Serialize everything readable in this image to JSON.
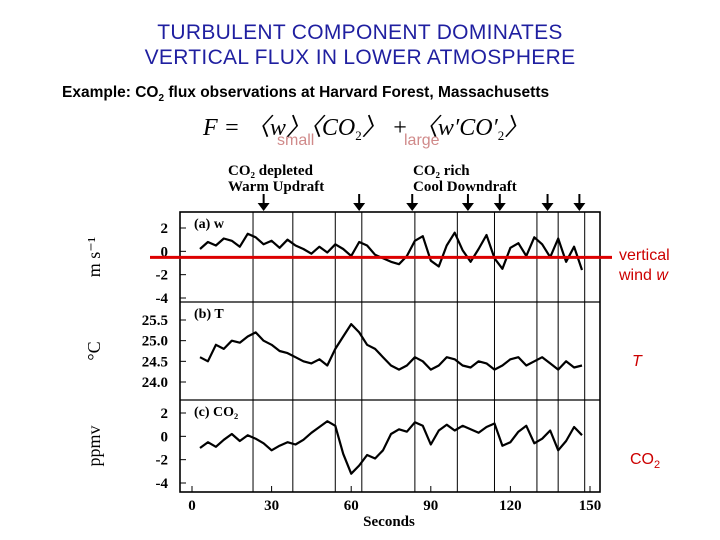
{
  "slide": {
    "title_line1": "TURBULENT COMPONENT DOMINATES",
    "title_line2": "VERTICAL FLUX IN LOWER ATMOSPHERE",
    "subtitle_pre": "Example: CO",
    "subtitle_sub": "2",
    "subtitle_post": " flux observations at Harvard Forest, Massachusetts",
    "equation": {
      "lhs": "F",
      "term1": "〈w〉〈CO",
      "term1_sub": "2",
      "term1_end": "〉",
      "plus": "+",
      "term2": "〈w′CO′",
      "term2_sub": "2",
      "term2_end": "〉"
    },
    "label_small": "small",
    "label_large": "large",
    "side_labels": {
      "w_line1": "vertical",
      "w_line2_pre": "wind ",
      "w_line2_var": "w",
      "t": "T",
      "co2_pre": "CO",
      "co2_sub": "2"
    },
    "colors": {
      "title": "#1f1fa0",
      "side": "#cc0000",
      "tag": "#d08a8a",
      "zero_line": "#dd0000"
    }
  },
  "chart_data": {
    "type": "line",
    "xlabel": "Seconds",
    "x_ticks": [
      0,
      30,
      60,
      90,
      120,
      150
    ],
    "xlim": [
      0,
      150
    ],
    "annotations": {
      "left_line1": "CO₂ depleted",
      "left_line2": "Warm Updraft",
      "right_line1": "CO₂ rich",
      "right_line2": "Cool Downdraft"
    },
    "event_times": [
      23,
      38,
      54,
      64,
      84,
      100,
      114,
      130,
      138,
      148
    ],
    "arrow_times": [
      27,
      63,
      83,
      104,
      116,
      134,
      146
    ],
    "panels": [
      {
        "label": "(a) w",
        "ylabel": "m s⁻¹",
        "ylim": [
          -4,
          2
        ],
        "y_ticks": [
          "2",
          "0",
          "-2",
          "-4"
        ],
        "y_tick_values": [
          2,
          0,
          -2,
          -4
        ],
        "series": [
          {
            "x": [
              3,
              6,
              9,
              12,
              15,
              18,
              21,
              24,
              27,
              30,
              33,
              36,
              39,
              42,
              45,
              48,
              51,
              54,
              57,
              60,
              63,
              66,
              69,
              72,
              75,
              78,
              81,
              84,
              87,
              90,
              93,
              96,
              99,
              102,
              105,
              108,
              111,
              114,
              117,
              120,
              123,
              126,
              129,
              132,
              135,
              138,
              141,
              144,
              147
            ],
            "values": [
              0.2,
              0.8,
              0.5,
              1.1,
              0.9,
              0.4,
              1.5,
              1.2,
              0.6,
              0.9,
              0.3,
              1.0,
              0.5,
              0.2,
              -0.2,
              0.4,
              -0.1,
              0.6,
              0.2,
              -0.4,
              0.8,
              0.5,
              -0.3,
              -0.6,
              -0.9,
              -1.1,
              -0.4,
              0.9,
              1.3,
              -0.8,
              -1.3,
              0.5,
              1.6,
              0.1,
              -0.9,
              0.2,
              1.4,
              -0.6,
              -1.5,
              0.3,
              0.7,
              -0.4,
              1.2,
              0.6,
              -0.5,
              1.1,
              -0.9,
              0.4,
              -1.6
            ]
          }
        ]
      },
      {
        "label": "(b) T",
        "ylabel": "°C",
        "ylim": [
          24.0,
          25.5
        ],
        "y_ticks": [
          "25.5",
          "25.0",
          "24.5",
          "24.0"
        ],
        "y_tick_values": [
          25.5,
          25.0,
          24.5,
          24.0
        ],
        "series": [
          {
            "x": [
              3,
              6,
              9,
              12,
              15,
              18,
              21,
              24,
              27,
              30,
              33,
              36,
              39,
              42,
              45,
              48,
              51,
              54,
              57,
              60,
              63,
              66,
              69,
              72,
              75,
              78,
              81,
              84,
              87,
              90,
              93,
              96,
              99,
              102,
              105,
              108,
              111,
              114,
              117,
              120,
              123,
              126,
              129,
              132,
              135,
              138,
              141,
              144,
              147
            ],
            "values": [
              24.6,
              24.5,
              24.9,
              24.8,
              25.0,
              24.95,
              25.1,
              25.2,
              25.0,
              24.9,
              24.75,
              24.7,
              24.6,
              24.5,
              24.45,
              24.55,
              24.4,
              24.8,
              25.1,
              25.4,
              25.2,
              24.9,
              24.8,
              24.6,
              24.4,
              24.3,
              24.4,
              24.6,
              24.5,
              24.3,
              24.4,
              24.6,
              24.55,
              24.4,
              24.35,
              24.5,
              24.45,
              24.3,
              24.4,
              24.55,
              24.6,
              24.4,
              24.5,
              24.6,
              24.45,
              24.3,
              24.5,
              24.35,
              24.4
            ]
          }
        ]
      },
      {
        "label": "(c) CO₂",
        "ylabel": "ppmv",
        "ylim": [
          -4,
          2
        ],
        "y_ticks": [
          "2",
          "0",
          "-2",
          "-4"
        ],
        "y_tick_values": [
          2,
          0,
          -2,
          -4
        ],
        "series": [
          {
            "x": [
              3,
              6,
              9,
              12,
              15,
              18,
              21,
              24,
              27,
              30,
              33,
              36,
              39,
              42,
              45,
              48,
              51,
              54,
              57,
              60,
              63,
              66,
              69,
              72,
              75,
              78,
              81,
              84,
              87,
              90,
              93,
              96,
              99,
              102,
              105,
              108,
              111,
              114,
              117,
              120,
              123,
              126,
              129,
              132,
              135,
              138,
              141,
              144,
              147
            ],
            "values": [
              -1.0,
              -0.5,
              -0.9,
              -0.3,
              0.2,
              -0.4,
              0.1,
              -0.2,
              -0.6,
              -1.2,
              -0.8,
              -0.5,
              -0.7,
              -0.3,
              0.3,
              0.8,
              1.3,
              0.9,
              -1.5,
              -3.2,
              -2.5,
              -1.6,
              -1.9,
              -1.2,
              0.2,
              0.6,
              0.4,
              1.2,
              0.9,
              -0.7,
              0.5,
              1.0,
              0.5,
              0.9,
              0.6,
              0.3,
              0.8,
              1.1,
              -0.8,
              -0.5,
              0.4,
              0.9,
              -0.6,
              -0.2,
              0.5,
              -1.2,
              -0.4,
              0.8,
              0.1
            ]
          }
        ]
      }
    ]
  }
}
